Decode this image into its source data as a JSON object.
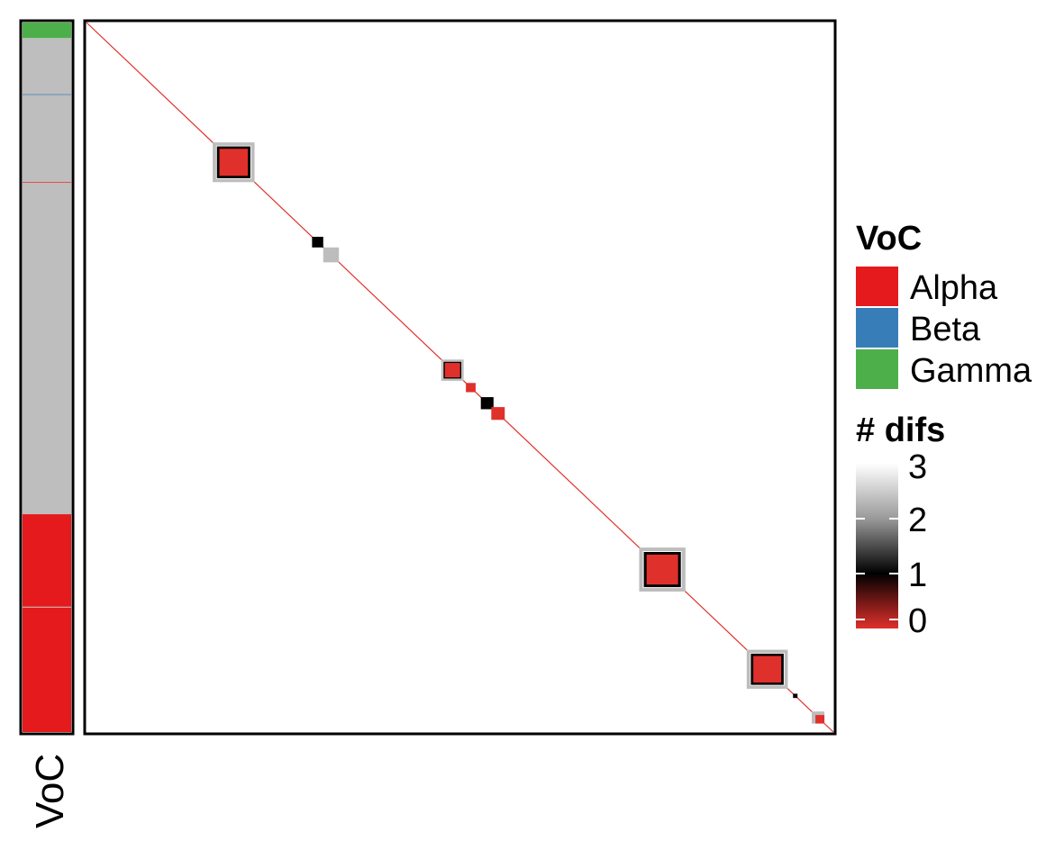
{
  "chart_data": {
    "type": "heatmap",
    "annotation_bar": {
      "label": "VoC",
      "segments": [
        {
          "from": 0.0,
          "to": 0.022,
          "voc": "Gamma"
        },
        {
          "from": 0.022,
          "to": 0.101,
          "voc": "none"
        },
        {
          "from": 0.101,
          "to": 0.102,
          "voc": "Beta"
        },
        {
          "from": 0.102,
          "to": 0.225,
          "voc": "none"
        },
        {
          "from": 0.225,
          "to": 0.226,
          "voc": "Alpha"
        },
        {
          "from": 0.226,
          "to": 0.693,
          "voc": "none"
        },
        {
          "from": 0.693,
          "to": 1.0,
          "voc": "Alpha"
        }
      ],
      "segment_separators": [
        0.824
      ]
    },
    "heatmap": {
      "diagonal_value": 0,
      "blocks": [
        {
          "from": 0.169,
          "to": 0.225,
          "value": 0,
          "halo": [
            0.169,
            0.186,
            1
          ]
        },
        {
          "from": 0.74,
          "to": 0.802,
          "value": 0
        },
        {
          "from": 0.884,
          "to": 0.939,
          "value": 0
        },
        {
          "from": 0.475,
          "to": 0.505,
          "value": 0
        },
        {
          "from": 0.508,
          "to": 0.521,
          "value": 0
        },
        {
          "from": 0.528,
          "to": 0.545,
          "value": 1
        },
        {
          "from": 0.542,
          "to": 0.56,
          "value": 0
        },
        {
          "from": 0.302,
          "to": 0.317,
          "value": 1
        },
        {
          "from": 0.327,
          "to": 0.337,
          "value": 0
        },
        {
          "from": 0.317,
          "to": 0.338,
          "value": 2
        },
        {
          "from": 0.971,
          "to": 0.988,
          "value": 2
        },
        {
          "from": 0.976,
          "to": 0.988,
          "value": 0
        },
        {
          "from": 0.946,
          "to": 0.952,
          "value": 1
        }
      ]
    },
    "legend_voc": {
      "title": "VoC",
      "entries": [
        {
          "label": "Alpha",
          "color": "#E41A1C"
        },
        {
          "label": "Beta",
          "color": "#377EB8"
        },
        {
          "label": "Gamma",
          "color": "#4DAF4A"
        }
      ]
    },
    "legend_difs": {
      "title": "# difs",
      "ticks": [
        "3",
        "2",
        "1",
        "0"
      ],
      "range": [
        0,
        3
      ],
      "scale": [
        {
          "value": 0,
          "color": "#E0302B"
        },
        {
          "value": 1,
          "color": "#000000"
        },
        {
          "value": 2,
          "color": "#999999"
        },
        {
          "value": 3,
          "color": "#FFFFFF"
        }
      ]
    },
    "colors": {
      "none_bar": "#BEBEBE",
      "diagonal": "#E0302B"
    }
  }
}
